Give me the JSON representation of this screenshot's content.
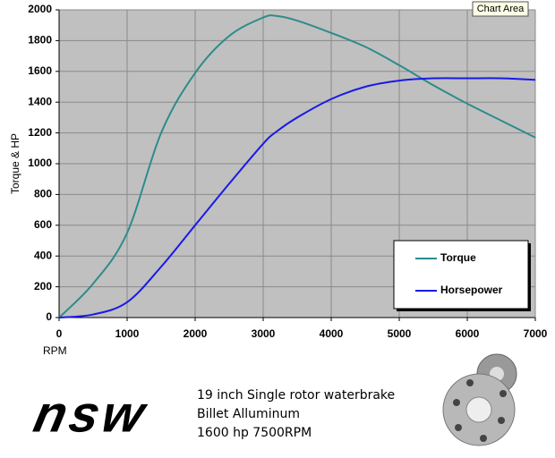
{
  "chart_data": {
    "type": "line",
    "ylabel": "Torque & HP",
    "xlabel": "RPM",
    "x": [
      0,
      500,
      1000,
      1500,
      2000,
      2500,
      3000,
      3200,
      3500,
      4000,
      4500,
      5000,
      5500,
      6000,
      6500,
      7000
    ],
    "series": [
      {
        "name": "Torque",
        "color": "#2e8b8b",
        "values": [
          0,
          220,
          550,
          1200,
          1590,
          1830,
          1950,
          1960,
          1930,
          1850,
          1760,
          1640,
          1510,
          1390,
          1280,
          1170
        ]
      },
      {
        "name": "Horsepower",
        "color": "#1a1ae6",
        "values": [
          0,
          20,
          100,
          330,
          600,
          870,
          1130,
          1210,
          1300,
          1420,
          1500,
          1540,
          1555,
          1555,
          1555,
          1545
        ]
      }
    ],
    "xlim": [
      0,
      7000
    ],
    "xticks": [
      0,
      1000,
      2000,
      3000,
      4000,
      5000,
      6000,
      7000
    ],
    "ylim": [
      0,
      2000
    ],
    "yticks": [
      0,
      200,
      400,
      600,
      800,
      1000,
      1200,
      1400,
      1600,
      1800,
      2000
    ],
    "grid": true,
    "legend": "lower right",
    "background": "#c0c0c0"
  },
  "tooltip": "Chart Area",
  "footer": {
    "logo": "nsw",
    "lines": [
      "19 inch Single rotor waterbrake",
      "Billet Alluminum",
      "1600 hp 7500RPM"
    ]
  }
}
